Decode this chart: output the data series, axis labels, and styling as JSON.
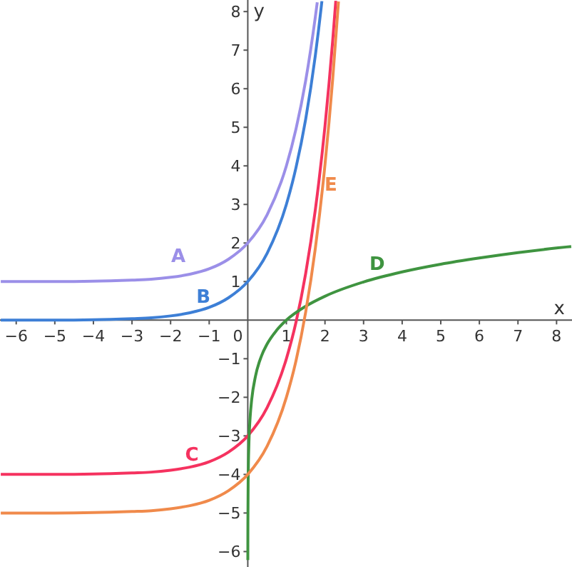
{
  "chart_data": {
    "type": "line",
    "xlabel": "x",
    "ylabel": "y",
    "xlim": [
      -6.42,
      8.4
    ],
    "ylim": [
      -6.4,
      8.3
    ],
    "xticks": [
      -6,
      -5,
      -4,
      -3,
      -2,
      -1,
      0,
      1,
      2,
      3,
      4,
      5,
      6,
      7,
      8
    ],
    "yticks": [
      -6,
      -5,
      -4,
      -3,
      -2,
      -1,
      1,
      2,
      3,
      4,
      5,
      6,
      7,
      8
    ],
    "grid": false,
    "marker": "none",
    "line_style": "solid",
    "series": [
      {
        "name": "A",
        "color": "#9b8fe8",
        "x": [
          -6.4,
          -5,
          -4,
          -3,
          -2.5,
          -2,
          -1.5,
          -1,
          -0.5,
          0,
          0.5,
          1,
          1.25,
          1.5,
          1.75,
          1.8
        ],
        "values": [
          1.0,
          1.0,
          1.01,
          1.04,
          1.06,
          1.11,
          1.19,
          1.33,
          1.58,
          2,
          2.73,
          4.0,
          4.96,
          6.21,
          7.86,
          8.24
        ]
      },
      {
        "name": "B",
        "color": "#3d7fd6",
        "x": [
          -6.4,
          -5,
          -4,
          -3,
          -2.5,
          -2,
          -1.5,
          -1,
          -0.5,
          0,
          0.5,
          1,
          1.25,
          1.5,
          1.75,
          1.9,
          1.92
        ],
        "values": [
          0,
          0,
          0.01,
          0.04,
          0.06,
          0.11,
          0.19,
          0.33,
          0.58,
          1,
          1.73,
          3.0,
          3.96,
          5.21,
          6.86,
          8.09,
          8.27
        ]
      },
      {
        "name": "C",
        "color": "#f5325f",
        "x": [
          -6.4,
          -5,
          -4,
          -3,
          -2.5,
          -2,
          -1.5,
          -1,
          -0.5,
          0,
          0.5,
          1,
          1.25,
          1.5,
          1.75,
          2,
          2.2,
          2.28
        ],
        "values": [
          -4.0,
          -4.0,
          -3.99,
          -3.96,
          -3.94,
          -3.89,
          -3.81,
          -3.67,
          -3.42,
          -3,
          -2.27,
          -1.0,
          -0.05,
          1.21,
          2.86,
          5.03,
          7.25,
          8.28
        ]
      },
      {
        "name": "D",
        "color": "#3f9440",
        "x": [
          0.001,
          0.003,
          0.01,
          0.03,
          0.06,
          0.1,
          0.2,
          0.35,
          0.5,
          0.75,
          1,
          1.5,
          2,
          3,
          4,
          5,
          6,
          7,
          8,
          8.38
        ],
        "values": [
          -6.22,
          -5.23,
          -4.14,
          -3.16,
          -2.53,
          -2.07,
          -1.45,
          -0.94,
          -0.62,
          -0.26,
          0,
          0.36,
          0.62,
          0.99,
          1.25,
          1.45,
          1.61,
          1.75,
          1.87,
          1.91
        ]
      },
      {
        "name": "E",
        "color": "#f08a4b",
        "x": [
          -6.4,
          -5,
          -4,
          -3,
          -2.5,
          -2,
          -1.5,
          -1,
          -0.5,
          0,
          0.5,
          1,
          1.25,
          1.5,
          1.75,
          2,
          2.2,
          2.35
        ],
        "values": [
          -5,
          -5,
          -4.99,
          -4.96,
          -4.94,
          -4.89,
          -4.81,
          -4.67,
          -4.42,
          -4,
          -3.27,
          -2.0,
          -1.05,
          0.21,
          1.86,
          4.03,
          6.25,
          8.26
        ]
      }
    ]
  }
}
